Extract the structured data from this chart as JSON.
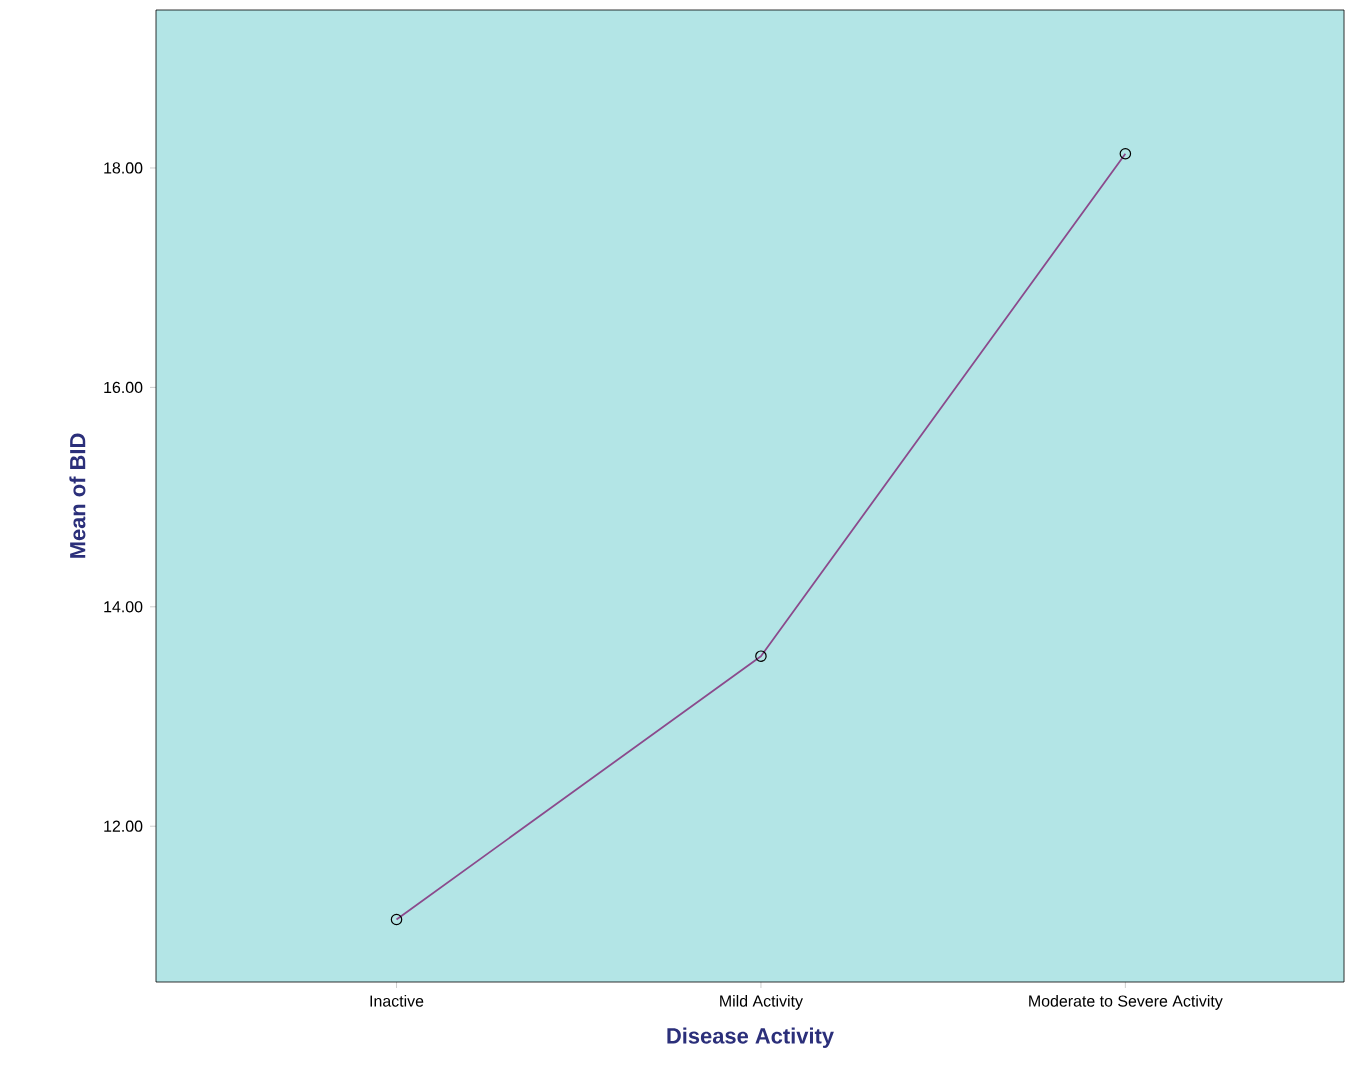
{
  "chart_data": {
    "type": "line",
    "xlabel": "Disease Activity",
    "ylabel": "Mean of BID",
    "categories": [
      "Inactive",
      "Mild Activity",
      "Moderate to Severe Activity"
    ],
    "series": [
      {
        "color": "#8b4a8c",
        "values": [
          11.15,
          13.55,
          18.13
        ]
      }
    ],
    "ylim": [
      10.58,
      19.44
    ],
    "yticks": [
      {
        "value": 12,
        "label": "12.00"
      },
      {
        "value": 14,
        "label": "14.00"
      },
      {
        "value": 16,
        "label": "16.00"
      },
      {
        "value": 18,
        "label": "18.00"
      }
    ],
    "grid": false,
    "marker": "circle",
    "line_style": "solid"
  }
}
